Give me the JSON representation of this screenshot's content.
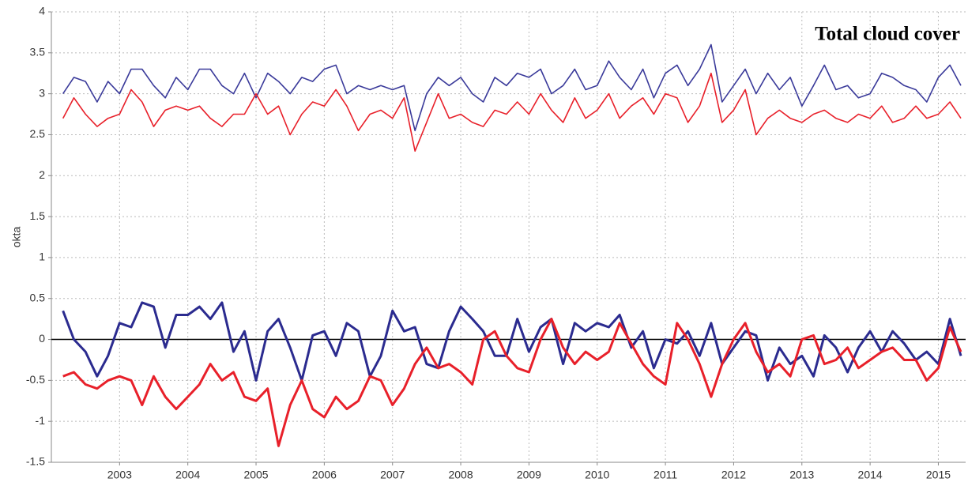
{
  "chart_data": {
    "type": "line",
    "title": "Total cloud cover",
    "ylabel": "okta",
    "x": [
      2002.17,
      2002.33,
      2002.5,
      2002.67,
      2002.83,
      2003.0,
      2003.17,
      2003.33,
      2003.5,
      2003.67,
      2003.83,
      2004.0,
      2004.17,
      2004.33,
      2004.5,
      2004.67,
      2004.83,
      2005.0,
      2005.17,
      2005.33,
      2005.5,
      2005.67,
      2005.83,
      2006.0,
      2006.17,
      2006.33,
      2006.5,
      2006.67,
      2006.83,
      2007.0,
      2007.17,
      2007.33,
      2007.5,
      2007.67,
      2007.83,
      2008.0,
      2008.17,
      2008.33,
      2008.5,
      2008.67,
      2008.83,
      2009.0,
      2009.17,
      2009.33,
      2009.5,
      2009.67,
      2009.83,
      2010.0,
      2010.17,
      2010.33,
      2010.5,
      2010.67,
      2010.83,
      2011.0,
      2011.17,
      2011.33,
      2011.5,
      2011.67,
      2011.83,
      2012.0,
      2012.17,
      2012.33,
      2012.5,
      2012.67,
      2012.83,
      2013.0,
      2013.17,
      2013.33,
      2013.5,
      2013.67,
      2013.83,
      2014.0,
      2014.17,
      2014.33,
      2014.5,
      2014.67,
      2014.83,
      2015.0,
      2015.17,
      2015.33
    ],
    "series": [
      {
        "color": "#3a3a9a",
        "width": 1.6,
        "values": [
          3.0,
          3.2,
          3.15,
          2.9,
          3.15,
          3.0,
          3.3,
          3.3,
          3.1,
          2.95,
          3.2,
          3.05,
          3.3,
          3.3,
          3.1,
          3.0,
          3.25,
          2.95,
          3.25,
          3.15,
          3.0,
          3.2,
          3.15,
          3.3,
          3.35,
          3.0,
          3.1,
          3.05,
          3.1,
          3.05,
          3.1,
          2.55,
          3.0,
          3.2,
          3.1,
          3.2,
          3.0,
          2.9,
          3.2,
          3.1,
          3.25,
          3.2,
          3.3,
          3.0,
          3.1,
          3.3,
          3.05,
          3.1,
          3.4,
          3.2,
          3.05,
          3.3,
          2.95,
          3.25,
          3.35,
          3.1,
          3.3,
          3.6,
          2.9,
          3.1,
          3.3,
          3.0,
          3.25,
          3.05,
          3.2,
          2.85,
          3.1,
          3.35,
          3.05,
          3.1,
          2.95,
          3.0,
          3.25,
          3.2,
          3.1,
          3.05,
          2.9,
          3.2,
          3.35,
          3.1
        ]
      },
      {
        "color": "#e8202a",
        "width": 1.6,
        "values": [
          2.7,
          2.95,
          2.75,
          2.6,
          2.7,
          2.75,
          3.05,
          2.9,
          2.6,
          2.8,
          2.85,
          2.8,
          2.85,
          2.7,
          2.6,
          2.75,
          2.75,
          3.0,
          2.75,
          2.85,
          2.5,
          2.75,
          2.9,
          2.85,
          3.05,
          2.85,
          2.55,
          2.75,
          2.8,
          2.7,
          2.95,
          2.3,
          2.65,
          3.0,
          2.7,
          2.75,
          2.65,
          2.6,
          2.8,
          2.75,
          2.9,
          2.75,
          3.0,
          2.8,
          2.65,
          2.95,
          2.7,
          2.8,
          3.0,
          2.7,
          2.85,
          2.95,
          2.75,
          3.0,
          2.95,
          2.65,
          2.85,
          3.25,
          2.65,
          2.8,
          3.05,
          2.5,
          2.7,
          2.8,
          2.7,
          2.65,
          2.75,
          2.8,
          2.7,
          2.65,
          2.75,
          2.7,
          2.85,
          2.65,
          2.7,
          2.85,
          2.7,
          2.75,
          2.9,
          2.7
        ]
      },
      {
        "color": "#2b2b8f",
        "width": 3,
        "values": [
          0.35,
          0.0,
          -0.15,
          -0.45,
          -0.2,
          0.2,
          0.15,
          0.45,
          0.4,
          -0.1,
          0.3,
          0.3,
          0.4,
          0.25,
          0.45,
          -0.15,
          0.1,
          -0.5,
          0.1,
          0.25,
          -0.1,
          -0.5,
          0.05,
          0.1,
          -0.2,
          0.2,
          0.1,
          -0.45,
          -0.2,
          0.35,
          0.1,
          0.15,
          -0.3,
          -0.35,
          0.1,
          0.4,
          0.25,
          0.1,
          -0.2,
          -0.2,
          0.25,
          -0.15,
          0.15,
          0.25,
          -0.3,
          0.2,
          0.1,
          0.2,
          0.15,
          0.3,
          -0.1,
          0.1,
          -0.35,
          0.0,
          -0.05,
          0.1,
          -0.2,
          0.2,
          -0.3,
          -0.1,
          0.1,
          0.05,
          -0.5,
          -0.1,
          -0.3,
          -0.2,
          -0.45,
          0.05,
          -0.1,
          -0.4,
          -0.1,
          0.1,
          -0.15,
          0.1,
          -0.05,
          -0.25,
          -0.15,
          -0.3,
          0.25,
          -0.2
        ]
      },
      {
        "color": "#e8202a",
        "width": 3,
        "values": [
          -0.45,
          -0.4,
          -0.55,
          -0.6,
          -0.5,
          -0.45,
          -0.5,
          -0.8,
          -0.45,
          -0.7,
          -0.85,
          -0.7,
          -0.55,
          -0.3,
          -0.5,
          -0.4,
          -0.7,
          -0.75,
          -0.6,
          -1.3,
          -0.8,
          -0.5,
          -0.85,
          -0.95,
          -0.7,
          -0.85,
          -0.75,
          -0.45,
          -0.5,
          -0.8,
          -0.6,
          -0.3,
          -0.1,
          -0.35,
          -0.3,
          -0.4,
          -0.55,
          0.0,
          0.1,
          -0.2,
          -0.35,
          -0.4,
          0.0,
          0.25,
          -0.1,
          -0.3,
          -0.15,
          -0.25,
          -0.15,
          0.2,
          -0.05,
          -0.3,
          -0.45,
          -0.55,
          0.2,
          0.0,
          -0.3,
          -0.7,
          -0.3,
          0.0,
          0.2,
          -0.15,
          -0.4,
          -0.3,
          -0.45,
          0.0,
          0.05,
          -0.3,
          -0.25,
          -0.1,
          -0.35,
          -0.25,
          -0.15,
          -0.1,
          -0.25,
          -0.25,
          -0.5,
          -0.35,
          0.15,
          -0.15
        ]
      }
    ],
    "xlim": [
      2002.0,
      2015.4
    ],
    "xticks": [
      2003,
      2004,
      2005,
      2006,
      2007,
      2008,
      2009,
      2010,
      2011,
      2012,
      2013,
      2014,
      2015
    ],
    "ylim": [
      -1.5,
      4
    ],
    "yticks": [
      -1.5,
      -1,
      -0.5,
      0,
      0.5,
      1,
      1.5,
      2,
      2.5,
      3,
      3.5,
      4
    ],
    "grid": true
  }
}
